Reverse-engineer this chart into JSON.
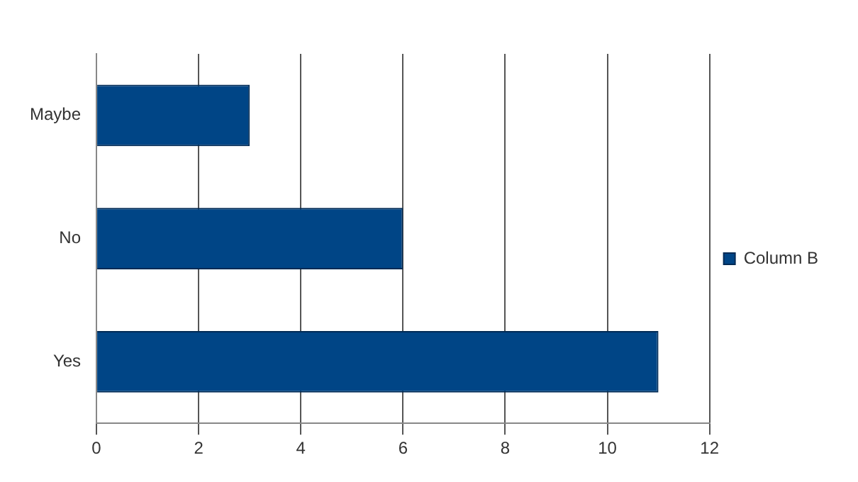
{
  "chart_data": {
    "type": "bar",
    "orientation": "horizontal",
    "categories": [
      "Maybe",
      "No",
      "Yes"
    ],
    "series": [
      {
        "name": "Column B",
        "color": "#004586",
        "values": [
          3,
          6,
          11
        ]
      }
    ],
    "xlim": [
      0,
      12
    ],
    "xticks": [
      0,
      2,
      4,
      6,
      8,
      10,
      12
    ],
    "grid": "x",
    "legend": "right"
  }
}
